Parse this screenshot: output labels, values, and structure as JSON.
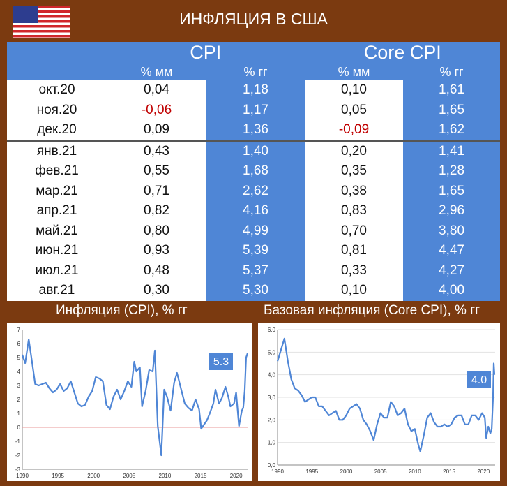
{
  "title": "ИНФЛЯЦИЯ В США",
  "table": {
    "groups": [
      "CPI",
      "Core CPI"
    ],
    "subheaders": [
      "% мм",
      "% гг",
      "% мм",
      "% гг"
    ],
    "rows": [
      {
        "month": "окт.20",
        "cpi_mm": "0,04",
        "cpi_yy": "1,18",
        "core_mm": "0,10",
        "core_yy": "1,61"
      },
      {
        "month": "ноя.20",
        "cpi_mm": "-0,06",
        "cpi_yy": "1,17",
        "core_mm": "0,05",
        "core_yy": "1,65"
      },
      {
        "month": "дек.20",
        "cpi_mm": "0,09",
        "cpi_yy": "1,36",
        "core_mm": "-0,09",
        "core_yy": "1,62"
      },
      {
        "month": "янв.21",
        "cpi_mm": "0,43",
        "cpi_yy": "1,40",
        "core_mm": "0,20",
        "core_yy": "1,41"
      },
      {
        "month": "фев.21",
        "cpi_mm": "0,55",
        "cpi_yy": "1,68",
        "core_mm": "0,35",
        "core_yy": "1,28"
      },
      {
        "month": "мар.21",
        "cpi_mm": "0,71",
        "cpi_yy": "2,62",
        "core_mm": "0,38",
        "core_yy": "1,65"
      },
      {
        "month": "апр.21",
        "cpi_mm": "0,82",
        "cpi_yy": "4,16",
        "core_mm": "0,83",
        "core_yy": "2,96"
      },
      {
        "month": "май.21",
        "cpi_mm": "0,80",
        "cpi_yy": "4,99",
        "core_mm": "0,70",
        "core_yy": "3,80"
      },
      {
        "month": "июн.21",
        "cpi_mm": "0,93",
        "cpi_yy": "5,39",
        "core_mm": "0,81",
        "core_yy": "4,47"
      },
      {
        "month": "июл.21",
        "cpi_mm": "0,48",
        "cpi_yy": "5,37",
        "core_mm": "0,33",
        "core_yy": "4,27"
      },
      {
        "month": "авг.21",
        "cpi_mm": "0,30",
        "cpi_yy": "5,30",
        "core_mm": "0,10",
        "core_yy": "4,00"
      }
    ]
  },
  "captions": {
    "left": "Инфляция (CPI), % гг",
    "right": "Базовая инфляция (Core CPI), % гг"
  },
  "colors": {
    "accent_blue": "#4f86d6",
    "background_brown": "#7b3a10",
    "negative_red": "#c00000",
    "line_blue": "#4f86d6"
  },
  "chart_data": [
    {
      "type": "line",
      "title": "",
      "xlabel": "",
      "ylabel": "",
      "xlim": [
        1990,
        2021.7
      ],
      "ylim": [
        -3,
        7
      ],
      "yticks": [
        "-3",
        "-2",
        "-1",
        "0",
        "1",
        "2",
        "3",
        "4",
        "5",
        "6",
        "7"
      ],
      "xticks": [
        "1990",
        "1995",
        "2000",
        "2005",
        "2010",
        "2015",
        "2020"
      ],
      "grid": false,
      "reference_line": 0,
      "callout": "5.3",
      "series": [
        {
          "values": [
            [
              1990,
              5.2
            ],
            [
              1990.4,
              4.6
            ],
            [
              1990.9,
              6.3
            ],
            [
              1991.3,
              4.9
            ],
            [
              1991.8,
              3.1
            ],
            [
              1992.3,
              3.0
            ],
            [
              1992.8,
              3.1
            ],
            [
              1993.3,
              3.2
            ],
            [
              1993.8,
              2.8
            ],
            [
              1994.3,
              2.5
            ],
            [
              1994.8,
              2.7
            ],
            [
              1995.3,
              3.1
            ],
            [
              1995.8,
              2.6
            ],
            [
              1996.3,
              2.8
            ],
            [
              1996.8,
              3.3
            ],
            [
              1997.3,
              2.5
            ],
            [
              1997.8,
              1.7
            ],
            [
              1998.3,
              1.5
            ],
            [
              1998.8,
              1.6
            ],
            [
              1999.3,
              2.2
            ],
            [
              1999.8,
              2.6
            ],
            [
              2000.3,
              3.6
            ],
            [
              2000.8,
              3.5
            ],
            [
              2001.3,
              3.3
            ],
            [
              2001.8,
              1.6
            ],
            [
              2002.3,
              1.3
            ],
            [
              2002.8,
              2.2
            ],
            [
              2003.3,
              2.7
            ],
            [
              2003.8,
              2.0
            ],
            [
              2004.3,
              2.6
            ],
            [
              2004.8,
              3.3
            ],
            [
              2005.3,
              2.9
            ],
            [
              2005.7,
              4.7
            ],
            [
              2006.0,
              4.0
            ],
            [
              2006.5,
              4.3
            ],
            [
              2006.8,
              1.5
            ],
            [
              2007.3,
              2.6
            ],
            [
              2007.8,
              4.1
            ],
            [
              2008.3,
              4.0
            ],
            [
              2008.6,
              5.5
            ],
            [
              2009.0,
              0.1
            ],
            [
              2009.5,
              -2.0
            ],
            [
              2009.9,
              2.7
            ],
            [
              2010.3,
              2.2
            ],
            [
              2010.8,
              1.2
            ],
            [
              2011.3,
              3.2
            ],
            [
              2011.7,
              3.9
            ],
            [
              2012.3,
              2.7
            ],
            [
              2012.8,
              1.7
            ],
            [
              2013.3,
              1.4
            ],
            [
              2013.8,
              1.2
            ],
            [
              2014.3,
              2.0
            ],
            [
              2014.8,
              1.3
            ],
            [
              2015.1,
              -0.1
            ],
            [
              2015.5,
              0.2
            ],
            [
              2015.9,
              0.5
            ],
            [
              2016.3,
              1.0
            ],
            [
              2016.8,
              1.7
            ],
            [
              2017.1,
              2.7
            ],
            [
              2017.6,
              1.7
            ],
            [
              2018.0,
              2.1
            ],
            [
              2018.5,
              2.9
            ],
            [
              2018.9,
              2.2
            ],
            [
              2019.2,
              1.5
            ],
            [
              2019.7,
              1.7
            ],
            [
              2020.0,
              2.5
            ],
            [
              2020.4,
              0.1
            ],
            [
              2020.8,
              1.2
            ],
            [
              2021.0,
              1.4
            ],
            [
              2021.2,
              2.6
            ],
            [
              2021.4,
              5.0
            ],
            [
              2021.6,
              5.3
            ]
          ]
        }
      ]
    },
    {
      "type": "line",
      "title": "",
      "xlabel": "",
      "ylabel": "",
      "xlim": [
        1990,
        2021.7
      ],
      "ylim": [
        0,
        6
      ],
      "yticks": [
        "0,0",
        "1,0",
        "2,0",
        "3,0",
        "4,0",
        "5,0",
        "6,0"
      ],
      "xticks": [
        "1990",
        "1995",
        "2000",
        "2005",
        "2010",
        "2015",
        "2020"
      ],
      "grid": true,
      "callout": "4.0",
      "series": [
        {
          "values": [
            [
              1990,
              4.6
            ],
            [
              1990.5,
              5.1
            ],
            [
              1991.0,
              5.6
            ],
            [
              1991.5,
              4.6
            ],
            [
              1992.0,
              3.8
            ],
            [
              1992.5,
              3.4
            ],
            [
              1993.0,
              3.3
            ],
            [
              1993.5,
              3.1
            ],
            [
              1994.0,
              2.8
            ],
            [
              1994.5,
              2.9
            ],
            [
              1995.0,
              3.0
            ],
            [
              1995.5,
              3.0
            ],
            [
              1996.0,
              2.6
            ],
            [
              1996.5,
              2.6
            ],
            [
              1997.0,
              2.4
            ],
            [
              1997.5,
              2.2
            ],
            [
              1998.0,
              2.3
            ],
            [
              1998.5,
              2.4
            ],
            [
              1999.0,
              2.0
            ],
            [
              1999.5,
              2.0
            ],
            [
              2000.0,
              2.2
            ],
            [
              2000.5,
              2.5
            ],
            [
              2001.0,
              2.6
            ],
            [
              2001.5,
              2.7
            ],
            [
              2002.0,
              2.5
            ],
            [
              2002.5,
              2.0
            ],
            [
              2003.0,
              1.8
            ],
            [
              2003.5,
              1.5
            ],
            [
              2004.0,
              1.1
            ],
            [
              2004.5,
              1.8
            ],
            [
              2005.0,
              2.3
            ],
            [
              2005.5,
              2.1
            ],
            [
              2006.0,
              2.1
            ],
            [
              2006.5,
              2.8
            ],
            [
              2007.0,
              2.6
            ],
            [
              2007.5,
              2.2
            ],
            [
              2008.0,
              2.3
            ],
            [
              2008.5,
              2.5
            ],
            [
              2009.0,
              1.8
            ],
            [
              2009.5,
              1.5
            ],
            [
              2010.0,
              1.6
            ],
            [
              2010.5,
              0.9
            ],
            [
              2010.8,
              0.6
            ],
            [
              2011.3,
              1.3
            ],
            [
              2011.8,
              2.1
            ],
            [
              2012.3,
              2.3
            ],
            [
              2012.8,
              1.9
            ],
            [
              2013.3,
              1.7
            ],
            [
              2013.8,
              1.7
            ],
            [
              2014.3,
              1.8
            ],
            [
              2014.8,
              1.7
            ],
            [
              2015.3,
              1.8
            ],
            [
              2015.8,
              2.1
            ],
            [
              2016.3,
              2.2
            ],
            [
              2016.8,
              2.2
            ],
            [
              2017.3,
              1.8
            ],
            [
              2017.8,
              1.8
            ],
            [
              2018.3,
              2.2
            ],
            [
              2018.8,
              2.2
            ],
            [
              2019.3,
              2.0
            ],
            [
              2019.8,
              2.3
            ],
            [
              2020.2,
              2.1
            ],
            [
              2020.4,
              1.2
            ],
            [
              2020.7,
              1.7
            ],
            [
              2021.0,
              1.4
            ],
            [
              2021.2,
              1.6
            ],
            [
              2021.4,
              3.0
            ],
            [
              2021.5,
              4.5
            ],
            [
              2021.6,
              4.0
            ]
          ]
        }
      ]
    }
  ]
}
